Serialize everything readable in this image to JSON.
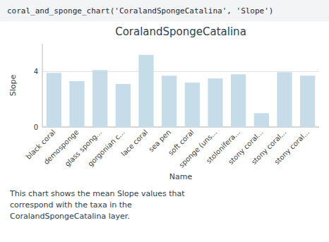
{
  "chart_data": {
    "type": "bar",
    "title": "CoralandSpongeCatalina",
    "x_label": "Name",
    "y_label": "Slope",
    "categories": [
      "black coral",
      "demosponge",
      "glass spong...",
      "gorgonian c...",
      "lace coral",
      "sea pen",
      "soft coral",
      "sponge (uns...",
      "stolonifera...",
      "stony coral...",
      "stony coral...",
      "stony coral..."
    ],
    "values": [
      3.9,
      3.3,
      4.1,
      3.1,
      5.2,
      3.7,
      3.2,
      3.5,
      3.8,
      1.0,
      3.95,
      3.7
    ],
    "color": "#c6dce8",
    "ylim": [
      0,
      6
    ],
    "yticks": [
      0,
      4
    ],
    "grid": true,
    "annotations": [
      "coral_and_sponge_chart('CoralandSpongeCatalina', 'Slope')",
      "This chart shows the mean Slope values that",
      "correspond with the taxa in the",
      "CoralandSpongeCatalina layer."
    ]
  }
}
